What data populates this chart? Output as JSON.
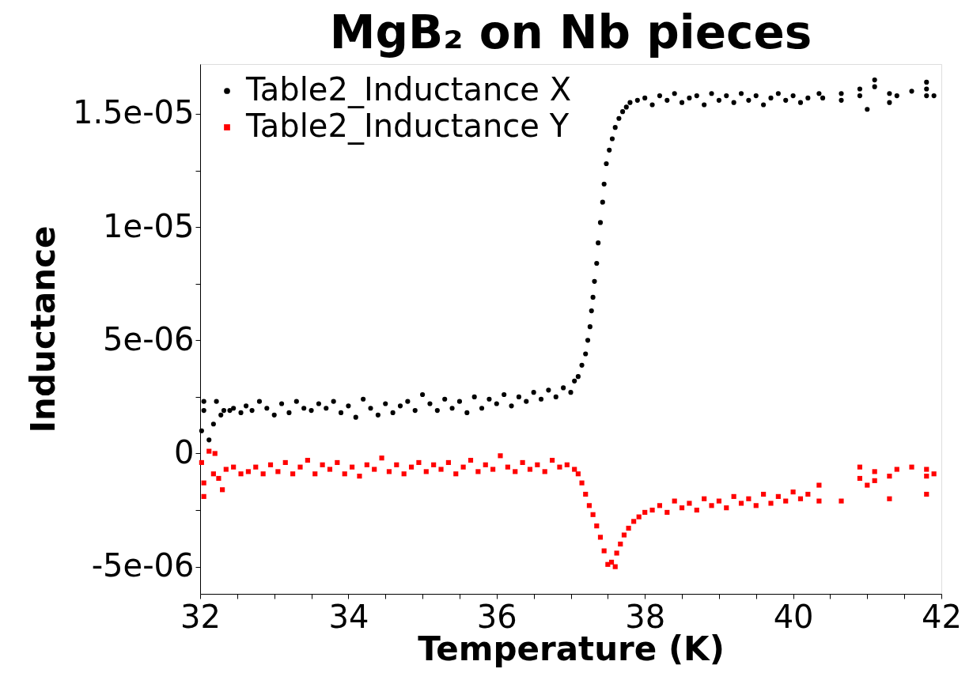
{
  "chart_data": {
    "type": "scatter",
    "title": "MgB₂ on Nb pieces",
    "xlabel": "Temperature (K)",
    "ylabel": "Inductance",
    "xlim": [
      32,
      42
    ],
    "ylim": [
      -6.2e-06,
      1.72e-05
    ],
    "xticks": [
      32,
      {
        "value": 32.5,
        "label": null
      },
      {
        "value": 33,
        "label": null
      },
      {
        "value": 33.5,
        "label": null
      },
      34,
      {
        "value": 34.5,
        "label": null
      },
      {
        "value": 35,
        "label": null
      },
      {
        "value": 35.5,
        "label": null
      },
      36,
      {
        "value": 36.5,
        "label": null
      },
      {
        "value": 37,
        "label": null
      },
      {
        "value": 37.5,
        "label": null
      },
      38,
      {
        "value": 38.5,
        "label": null
      },
      {
        "value": 39,
        "label": null
      },
      {
        "value": 39.5,
        "label": null
      },
      40,
      {
        "value": 40.5,
        "label": null
      },
      {
        "value": 41,
        "label": null
      },
      {
        "value": 41.5,
        "label": null
      },
      42
    ],
    "yticks": [
      {
        "value": -5e-06,
        "label": "-5e-06"
      },
      {
        "value": -2.5e-06,
        "label": null
      },
      0,
      {
        "value": 2.5e-06,
        "label": null
      },
      {
        "value": 5e-06,
        "label": "5e-06"
      },
      {
        "value": 7.5e-06,
        "label": null
      },
      {
        "value": 1e-05,
        "label": "1e-05"
      },
      {
        "value": 1.25e-05,
        "label": null
      },
      {
        "value": 1.5e-05,
        "label": "1.5e-05"
      }
    ],
    "grid": false,
    "legend": "top left",
    "series": [
      {
        "name": "Table2_Inductance X",
        "color": "#000000",
        "marker": "circle",
        "x": [
          32.02,
          32.05,
          32.05,
          32.12,
          32.18,
          32.22,
          32.28,
          32.32,
          32.4,
          32.45,
          32.55,
          32.62,
          32.7,
          32.8,
          32.9,
          33.0,
          33.1,
          33.2,
          33.3,
          33.4,
          33.5,
          33.6,
          33.7,
          33.8,
          33.9,
          34.0,
          34.1,
          34.2,
          34.3,
          34.4,
          34.5,
          34.6,
          34.7,
          34.8,
          34.9,
          35.0,
          35.1,
          35.2,
          35.3,
          35.4,
          35.5,
          35.6,
          35.7,
          35.8,
          35.9,
          36.0,
          36.1,
          36.2,
          36.3,
          36.4,
          36.5,
          36.6,
          36.7,
          36.8,
          36.9,
          37.0,
          37.05,
          37.1,
          37.15,
          37.2,
          37.23,
          37.26,
          37.28,
          37.3,
          37.32,
          37.35,
          37.37,
          37.4,
          37.43,
          37.45,
          37.48,
          37.52,
          37.56,
          37.6,
          37.65,
          37.7,
          37.75,
          37.8,
          37.9,
          38.0,
          38.1,
          38.2,
          38.3,
          38.4,
          38.5,
          38.6,
          38.7,
          38.8,
          38.9,
          39.0,
          39.1,
          39.2,
          39.3,
          39.4,
          39.5,
          39.6,
          39.7,
          39.8,
          39.9,
          40.0,
          40.1,
          40.2,
          40.35,
          40.4,
          40.65,
          40.65,
          40.9,
          40.9,
          41.0,
          41.1,
          41.1,
          41.3,
          41.3,
          41.4,
          41.6,
          41.8,
          41.8,
          41.8,
          41.9
        ],
        "values": [
          1e-06,
          2.3e-06,
          1.9e-06,
          6e-07,
          1.3e-06,
          2.3e-06,
          1.7e-06,
          1.9e-06,
          1.9e-06,
          2e-06,
          1.8e-06,
          2.1e-06,
          1.9e-06,
          2.3e-06,
          2e-06,
          1.7e-06,
          2.2e-06,
          1.8e-06,
          2.3e-06,
          2e-06,
          1.9e-06,
          2.2e-06,
          2e-06,
          2.3e-06,
          1.8e-06,
          2.1e-06,
          1.6e-06,
          2.4e-06,
          2e-06,
          1.7e-06,
          2.2e-06,
          1.8e-06,
          2.1e-06,
          2.3e-06,
          1.9e-06,
          2.6e-06,
          2.2e-06,
          1.9e-06,
          2.4e-06,
          2e-06,
          2.3e-06,
          1.8e-06,
          2.5e-06,
          2e-06,
          2.4e-06,
          2.2e-06,
          2.6e-06,
          2.1e-06,
          2.5e-06,
          2.3e-06,
          2.7e-06,
          2.4e-06,
          2.8e-06,
          2.5e-06,
          2.9e-06,
          2.7e-06,
          3.2e-06,
          3.4e-06,
          3.9e-06,
          4.4e-06,
          5e-06,
          5.6e-06,
          6.3e-06,
          6.9e-06,
          7.6e-06,
          8.4e-06,
          9.3e-06,
          1.02e-05,
          1.11e-05,
          1.19e-05,
          1.28e-05,
          1.34e-05,
          1.39e-05,
          1.44e-05,
          1.48e-05,
          1.51e-05,
          1.53e-05,
          1.55e-05,
          1.56e-05,
          1.57e-05,
          1.54e-05,
          1.58e-05,
          1.56e-05,
          1.59e-05,
          1.55e-05,
          1.57e-05,
          1.58e-05,
          1.54e-05,
          1.59e-05,
          1.56e-05,
          1.58e-05,
          1.55e-05,
          1.59e-05,
          1.56e-05,
          1.58e-05,
          1.54e-05,
          1.57e-05,
          1.59e-05,
          1.56e-05,
          1.58e-05,
          1.55e-05,
          1.57e-05,
          1.59e-05,
          1.57e-05,
          1.59e-05,
          1.56e-05,
          1.61e-05,
          1.58e-05,
          1.52e-05,
          1.65e-05,
          1.62e-05,
          1.59e-05,
          1.55e-05,
          1.58e-05,
          1.6e-05,
          1.64e-05,
          1.61e-05,
          1.58e-05,
          1.58e-05
        ]
      },
      {
        "name": "Table2_Inductance Y",
        "color": "#ff0000",
        "marker": "square",
        "x": [
          32.02,
          32.05,
          32.05,
          32.12,
          32.18,
          32.2,
          32.25,
          32.3,
          32.35,
          32.45,
          32.55,
          32.65,
          32.75,
          32.85,
          32.95,
          33.05,
          33.15,
          33.25,
          33.35,
          33.45,
          33.55,
          33.65,
          33.75,
          33.85,
          33.95,
          34.05,
          34.15,
          34.25,
          34.35,
          34.45,
          34.55,
          34.65,
          34.75,
          34.85,
          34.95,
          35.05,
          35.15,
          35.25,
          35.35,
          35.45,
          35.55,
          35.65,
          35.75,
          35.85,
          35.95,
          36.05,
          36.15,
          36.25,
          36.35,
          36.45,
          36.55,
          36.65,
          36.75,
          36.85,
          36.95,
          37.05,
          37.1,
          37.15,
          37.2,
          37.25,
          37.3,
          37.35,
          37.4,
          37.45,
          37.5,
          37.55,
          37.6,
          37.62,
          37.67,
          37.72,
          37.78,
          37.85,
          37.92,
          38.0,
          38.1,
          38.2,
          38.3,
          38.4,
          38.5,
          38.6,
          38.7,
          38.8,
          38.9,
          39.0,
          39.1,
          39.2,
          39.3,
          39.4,
          39.5,
          39.6,
          39.7,
          39.8,
          39.9,
          40.0,
          40.1,
          40.2,
          40.35,
          40.35,
          40.65,
          40.9,
          40.9,
          41.0,
          41.1,
          41.1,
          41.3,
          41.3,
          41.4,
          41.6,
          41.8,
          41.8,
          41.8,
          41.9
        ],
        "values": [
          -4e-07,
          -1.3e-06,
          -1.9e-06,
          1e-07,
          -9e-07,
          0.0,
          -1.1e-06,
          -1.6e-06,
          -7e-07,
          -6e-07,
          -9e-07,
          -8e-07,
          -6e-07,
          -9e-07,
          -5e-07,
          -8e-07,
          -4e-07,
          -9e-07,
          -6e-07,
          -3e-07,
          -9e-07,
          -5e-07,
          -7e-07,
          -4e-07,
          -9e-07,
          -6e-07,
          -1e-06,
          -5e-07,
          -7e-07,
          -2e-07,
          -8e-07,
          -5e-07,
          -9e-07,
          -6e-07,
          -4e-07,
          -8e-07,
          -5e-07,
          -7e-07,
          -4e-07,
          -9e-07,
          -6e-07,
          -3e-07,
          -8e-07,
          -5e-07,
          -7e-07,
          -1e-07,
          -6e-07,
          -8e-07,
          -4e-07,
          -7e-07,
          -5e-07,
          -8e-07,
          -3e-07,
          -6e-07,
          -5e-07,
          -7e-07,
          -9e-07,
          -1.3e-06,
          -1.8e-06,
          -2.3e-06,
          -2.7e-06,
          -3.2e-06,
          -3.7e-06,
          -4.3e-06,
          -4.9e-06,
          -4.8e-06,
          -5e-06,
          -4.4e-06,
          -4e-06,
          -3.6e-06,
          -3.3e-06,
          -3e-06,
          -2.8e-06,
          -2.6e-06,
          -2.5e-06,
          -2.3e-06,
          -2.6e-06,
          -2.1e-06,
          -2.4e-06,
          -2.2e-06,
          -2.5e-06,
          -2e-06,
          -2.3e-06,
          -2.1e-06,
          -2.4e-06,
          -1.9e-06,
          -2.2e-06,
          -2e-06,
          -2.3e-06,
          -1.8e-06,
          -2.2e-06,
          -1.9e-06,
          -2.1e-06,
          -1.7e-06,
          -2e-06,
          -1.8e-06,
          -1.4e-06,
          -2.1e-06,
          -2.1e-06,
          -6e-07,
          -1.1e-06,
          -1.4e-06,
          -8e-07,
          -1.2e-06,
          -1e-06,
          -2e-06,
          -7e-07,
          -6e-07,
          -7e-07,
          -1e-06,
          -1.8e-06,
          -9e-07
        ]
      }
    ]
  }
}
